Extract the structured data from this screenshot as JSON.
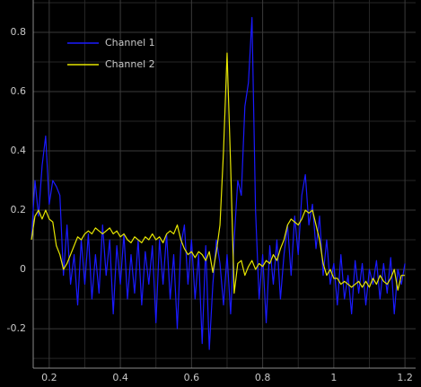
{
  "chart_data": {
    "type": "line",
    "x": [
      0.15,
      0.16,
      0.17,
      0.18,
      0.19,
      0.2,
      0.21,
      0.22,
      0.23,
      0.24,
      0.25,
      0.26,
      0.27,
      0.28,
      0.29,
      0.3,
      0.31,
      0.32,
      0.33,
      0.34,
      0.35,
      0.36,
      0.37,
      0.38,
      0.39,
      0.4,
      0.41,
      0.42,
      0.43,
      0.44,
      0.45,
      0.46,
      0.47,
      0.48,
      0.49,
      0.5,
      0.51,
      0.52,
      0.53,
      0.54,
      0.55,
      0.56,
      0.57,
      0.58,
      0.59,
      0.6,
      0.61,
      0.62,
      0.63,
      0.64,
      0.65,
      0.66,
      0.67,
      0.68,
      0.69,
      0.7,
      0.71,
      0.72,
      0.73,
      0.74,
      0.75,
      0.76,
      0.77,
      0.78,
      0.79,
      0.8,
      0.81,
      0.82,
      0.83,
      0.84,
      0.85,
      0.86,
      0.87,
      0.88,
      0.89,
      0.9,
      0.91,
      0.92,
      0.93,
      0.94,
      0.95,
      0.96,
      0.97,
      0.98,
      0.99,
      1.0,
      1.01,
      1.02,
      1.03,
      1.04,
      1.05,
      1.06,
      1.07,
      1.08,
      1.09,
      1.1,
      1.11,
      1.12,
      1.13,
      1.14,
      1.15,
      1.16,
      1.17,
      1.18,
      1.19,
      1.2
    ],
    "series": [
      {
        "name": "Channel 1",
        "color": "#1a1aff",
        "values": [
          0.1,
          0.3,
          0.18,
          0.35,
          0.45,
          0.22,
          0.3,
          0.28,
          0.25,
          -0.02,
          0.15,
          -0.05,
          0.05,
          -0.12,
          0.1,
          -0.05,
          0.12,
          -0.1,
          0.05,
          -0.08,
          0.15,
          -0.02,
          0.1,
          -0.15,
          0.08,
          -0.05,
          0.12,
          -0.1,
          0.05,
          -0.08,
          0.1,
          -0.12,
          0.06,
          -0.05,
          0.08,
          -0.18,
          0.1,
          -0.05,
          0.12,
          -0.1,
          0.05,
          -0.2,
          0.08,
          0.15,
          -0.05,
          0.1,
          -0.1,
          0.05,
          -0.25,
          0.08,
          -0.27,
          -0.05,
          0.1,
          0.02,
          -0.12,
          0.05,
          -0.15,
          0.1,
          0.3,
          0.25,
          0.55,
          0.63,
          0.85,
          0.2,
          -0.1,
          0.05,
          -0.18,
          0.08,
          -0.05,
          0.1,
          -0.1,
          0.05,
          0.15,
          -0.02,
          0.18,
          0.05,
          0.25,
          0.32,
          0.15,
          0.22,
          0.07,
          0.18,
          -0.02,
          0.1,
          -0.05,
          0.02,
          -0.12,
          0.05,
          -0.1,
          -0.02,
          -0.15,
          0.03,
          -0.08,
          0.02,
          -0.12,
          0.0,
          -0.05,
          0.03,
          -0.1,
          0.02,
          -0.08,
          0.04,
          -0.15,
          0.0,
          -0.05,
          0.02
        ]
      },
      {
        "name": "Channel 2",
        "color": "#e6e600",
        "values": [
          0.1,
          0.18,
          0.2,
          0.17,
          0.2,
          0.17,
          0.16,
          0.08,
          0.05,
          0.0,
          0.02,
          0.05,
          0.08,
          0.11,
          0.1,
          0.12,
          0.13,
          0.12,
          0.14,
          0.13,
          0.12,
          0.13,
          0.14,
          0.12,
          0.13,
          0.11,
          0.12,
          0.1,
          0.09,
          0.11,
          0.1,
          0.09,
          0.11,
          0.1,
          0.12,
          0.1,
          0.11,
          0.09,
          0.12,
          0.13,
          0.12,
          0.15,
          0.1,
          0.07,
          0.05,
          0.06,
          0.04,
          0.06,
          0.05,
          0.03,
          0.06,
          -0.01,
          0.06,
          0.15,
          0.4,
          0.73,
          0.35,
          -0.08,
          0.02,
          0.03,
          -0.02,
          0.01,
          0.03,
          0.0,
          0.02,
          0.01,
          0.03,
          0.02,
          0.05,
          0.03,
          0.07,
          0.1,
          0.15,
          0.17,
          0.16,
          0.15,
          0.17,
          0.2,
          0.19,
          0.2,
          0.15,
          0.1,
          0.02,
          -0.02,
          0.0,
          -0.03,
          -0.03,
          -0.05,
          -0.04,
          -0.05,
          -0.06,
          -0.05,
          -0.04,
          -0.06,
          -0.04,
          -0.06,
          -0.03,
          -0.05,
          -0.02,
          -0.04,
          -0.05,
          -0.03,
          0.0,
          -0.07,
          -0.02,
          -0.02
        ]
      }
    ],
    "xlim": [
      0.155,
      1.23
    ],
    "ylim": [
      -0.333,
      0.909
    ],
    "xticks": [
      0.2,
      0.4,
      0.6,
      0.8,
      1,
      1.2
    ],
    "yticks": [
      -0.2,
      0,
      0.2,
      0.4,
      0.6,
      0.8
    ],
    "x_minor_grid": [
      0.3,
      0.5,
      0.7,
      0.9,
      1.1
    ],
    "y_minor_grid": [
      -0.3,
      -0.1,
      0.1,
      0.3,
      0.5,
      0.7,
      0.9
    ],
    "grid": true,
    "legend": "top-left"
  }
}
